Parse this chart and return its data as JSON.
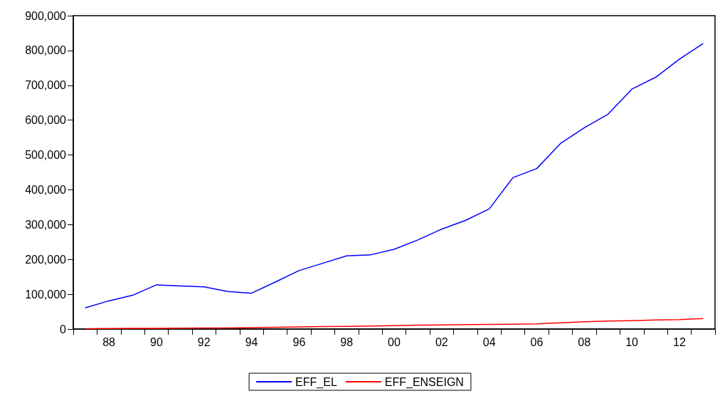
{
  "chart_data": {
    "type": "line",
    "categories": [
      null,
      "88",
      null,
      "90",
      null,
      "92",
      null,
      "94",
      null,
      "96",
      null,
      "98",
      null,
      "00",
      null,
      "02",
      null,
      "04",
      null,
      "06",
      null,
      "08",
      null,
      "10",
      null,
      "12",
      null
    ],
    "series": [
      {
        "name": "EFF_EL",
        "color": "#0000ff",
        "values": [
          61000,
          81000,
          97000,
          127000,
          124000,
          121000,
          108000,
          103000,
          135000,
          168000,
          189000,
          210000,
          213000,
          229000,
          256000,
          287000,
          312000,
          345000,
          435000,
          461000,
          533000,
          578000,
          617000,
          689000,
          723000,
          775000,
          820000
        ]
      },
      {
        "name": "EFF_ENSEIGN",
        "color": "#ff0000",
        "values": [
          1000,
          1500,
          2000,
          2000,
          2500,
          3000,
          3000,
          4000,
          5000,
          6000,
          7000,
          7500,
          8500,
          9500,
          11000,
          12000,
          13000,
          13500,
          14000,
          15000,
          18000,
          21000,
          23000,
          24000,
          26000,
          27000,
          30000
        ]
      }
    ],
    "ylim": [
      0,
      900000
    ],
    "yticks": [
      {
        "value": 0,
        "label": "0"
      },
      {
        "value": 100000,
        "label": "100,000"
      },
      {
        "value": 200000,
        "label": "200,000"
      },
      {
        "value": 300000,
        "label": "300,000"
      },
      {
        "value": 400000,
        "label": "400,000"
      },
      {
        "value": 500000,
        "label": "500,000"
      },
      {
        "value": 600000,
        "label": "600,000"
      },
      {
        "value": 700000,
        "label": "700,000"
      },
      {
        "value": 800000,
        "label": "800,000"
      },
      {
        "value": 900000,
        "label": "900,000"
      }
    ],
    "grid": false,
    "legend": "bottom",
    "marker": "none",
    "line_style": "solid"
  }
}
